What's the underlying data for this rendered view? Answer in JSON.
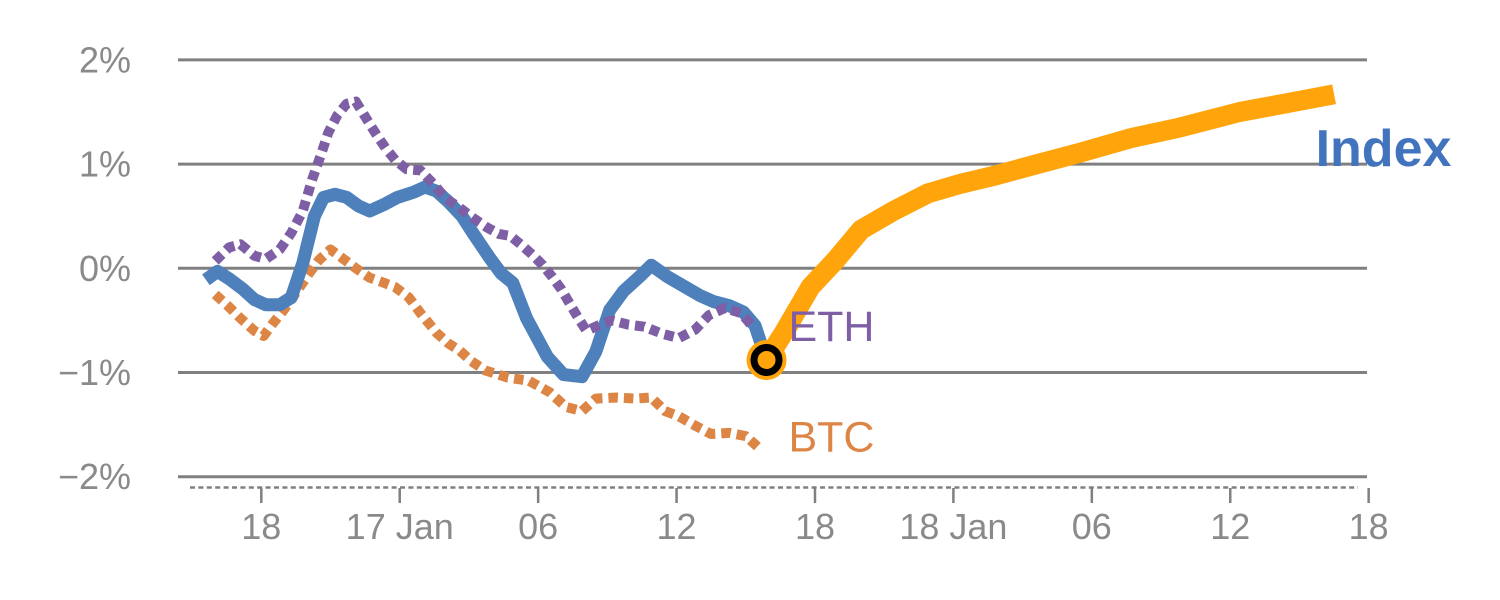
{
  "chart_data": {
    "type": "line",
    "title": "",
    "background": "#FFFFFF",
    "grid": true,
    "legend_position": "inline-end-of-line-labels",
    "colors": {
      "gridline": "#808080",
      "axis_text": "#8A8A8A",
      "index_line": "#4E80BB",
      "index_label": "#4274BE",
      "eth": "#7E5FA5",
      "btc": "#DD8544",
      "forecast": "#FFA40B",
      "marker_ring": "#000000"
    },
    "y_axis": {
      "unit": "%",
      "ylim": [
        -2.15,
        2.0
      ],
      "ticks": [
        {
          "label": "2%",
          "value": 2
        },
        {
          "label": "1%",
          "value": 1
        },
        {
          "label": "0%",
          "value": 0
        },
        {
          "label": "−1%",
          "value": -1
        },
        {
          "label": "−2%",
          "value": -2
        }
      ]
    },
    "x_axis": {
      "unit": "hours",
      "xlim_hours": [
        -3.6,
        47.9
      ],
      "minor_dash_row": true,
      "ticks": [
        {
          "label": "18",
          "hour": 0
        },
        {
          "label": "17 Jan",
          "hour": 6
        },
        {
          "label": "06",
          "hour": 12
        },
        {
          "label": "12",
          "hour": 18
        },
        {
          "label": "18",
          "hour": 24
        },
        {
          "label": "18 Jan",
          "hour": 30
        },
        {
          "label": "06",
          "hour": 36
        },
        {
          "label": "12",
          "hour": 42
        },
        {
          "label": "18",
          "hour": 48
        }
      ]
    },
    "series": [
      {
        "name": "BTC",
        "role": "history",
        "color": "#DD8544",
        "line_style": "dotted",
        "stroke_width": 10,
        "points": [
          [
            -2.0,
            -0.25
          ],
          [
            -1.4,
            -0.37
          ],
          [
            -0.9,
            -0.48
          ],
          [
            -0.3,
            -0.6
          ],
          [
            0.1,
            -0.65
          ],
          [
            0.5,
            -0.53
          ],
          [
            0.9,
            -0.42
          ],
          [
            1.3,
            -0.3
          ],
          [
            1.7,
            -0.17
          ],
          [
            2.1,
            -0.04
          ],
          [
            2.5,
            0.08
          ],
          [
            3.0,
            0.18
          ],
          [
            3.5,
            0.1
          ],
          [
            4.1,
            0.0
          ],
          [
            4.7,
            -0.09
          ],
          [
            5.2,
            -0.13
          ],
          [
            5.8,
            -0.18
          ],
          [
            6.4,
            -0.28
          ],
          [
            6.9,
            -0.43
          ],
          [
            7.6,
            -0.62
          ],
          [
            8.1,
            -0.72
          ],
          [
            8.6,
            -0.79
          ],
          [
            9.1,
            -0.89
          ],
          [
            9.7,
            -0.98
          ],
          [
            10.7,
            -1.05
          ],
          [
            11.6,
            -1.08
          ],
          [
            12.5,
            -1.19
          ],
          [
            13.2,
            -1.33
          ],
          [
            13.9,
            -1.37
          ],
          [
            14.5,
            -1.25
          ],
          [
            15.4,
            -1.24
          ],
          [
            16.2,
            -1.25
          ],
          [
            16.9,
            -1.24
          ],
          [
            17.5,
            -1.37
          ],
          [
            18.1,
            -1.42
          ],
          [
            18.8,
            -1.51
          ],
          [
            19.5,
            -1.59
          ],
          [
            20.3,
            -1.58
          ],
          [
            21.0,
            -1.61
          ],
          [
            21.6,
            -1.73
          ]
        ]
      },
      {
        "name": "Index",
        "role": "history",
        "color": "#4E80BB",
        "line_style": "solid",
        "stroke_width": 13,
        "points": [
          [
            -2.4,
            -0.11
          ],
          [
            -1.9,
            -0.03
          ],
          [
            -1.4,
            -0.1
          ],
          [
            -0.8,
            -0.2
          ],
          [
            -0.3,
            -0.3
          ],
          [
            0.2,
            -0.35
          ],
          [
            0.8,
            -0.35
          ],
          [
            1.3,
            -0.28
          ],
          [
            1.8,
            0.05
          ],
          [
            2.3,
            0.5
          ],
          [
            2.7,
            0.68
          ],
          [
            3.2,
            0.71
          ],
          [
            3.7,
            0.68
          ],
          [
            4.2,
            0.6
          ],
          [
            4.7,
            0.55
          ],
          [
            5.3,
            0.61
          ],
          [
            5.9,
            0.68
          ],
          [
            6.6,
            0.73
          ],
          [
            7.1,
            0.78
          ],
          [
            7.6,
            0.74
          ],
          [
            8.1,
            0.64
          ],
          [
            8.7,
            0.5
          ],
          [
            9.2,
            0.33
          ],
          [
            9.9,
            0.1
          ],
          [
            10.4,
            -0.05
          ],
          [
            10.9,
            -0.14
          ],
          [
            11.5,
            -0.48
          ],
          [
            12.4,
            -0.85
          ],
          [
            13.1,
            -1.02
          ],
          [
            13.9,
            -1.04
          ],
          [
            14.5,
            -0.8
          ],
          [
            15.1,
            -0.4
          ],
          [
            15.7,
            -0.22
          ],
          [
            16.4,
            -0.08
          ],
          [
            16.9,
            0.03
          ],
          [
            17.6,
            -0.08
          ],
          [
            18.3,
            -0.17
          ],
          [
            19.0,
            -0.26
          ],
          [
            19.6,
            -0.32
          ],
          [
            20.3,
            -0.36
          ],
          [
            20.9,
            -0.42
          ],
          [
            21.4,
            -0.55
          ],
          [
            21.9,
            -0.88
          ]
        ]
      },
      {
        "name": "ETH",
        "role": "history",
        "color": "#7E5FA5",
        "line_style": "dotted",
        "stroke_width": 10,
        "points": [
          [
            -2.0,
            0.07
          ],
          [
            -1.4,
            0.2
          ],
          [
            -0.9,
            0.23
          ],
          [
            -0.3,
            0.12
          ],
          [
            0.2,
            0.09
          ],
          [
            0.8,
            0.18
          ],
          [
            1.3,
            0.34
          ],
          [
            1.8,
            0.55
          ],
          [
            2.2,
            0.85
          ],
          [
            2.6,
            1.1
          ],
          [
            2.9,
            1.3
          ],
          [
            3.3,
            1.47
          ],
          [
            3.7,
            1.58
          ],
          [
            4.1,
            1.6
          ],
          [
            4.6,
            1.42
          ],
          [
            5.0,
            1.28
          ],
          [
            5.4,
            1.15
          ],
          [
            5.8,
            1.04
          ],
          [
            6.3,
            0.95
          ],
          [
            6.9,
            0.94
          ],
          [
            7.5,
            0.8
          ],
          [
            8.0,
            0.67
          ],
          [
            8.6,
            0.58
          ],
          [
            9.2,
            0.48
          ],
          [
            9.8,
            0.39
          ],
          [
            10.3,
            0.33
          ],
          [
            10.8,
            0.31
          ],
          [
            11.3,
            0.22
          ],
          [
            11.8,
            0.12
          ],
          [
            12.2,
            0.03
          ],
          [
            12.6,
            -0.08
          ],
          [
            13.0,
            -0.2
          ],
          [
            13.4,
            -0.35
          ],
          [
            13.8,
            -0.5
          ],
          [
            14.1,
            -0.6
          ],
          [
            14.6,
            -0.55
          ],
          [
            15.2,
            -0.5
          ],
          [
            15.9,
            -0.54
          ],
          [
            16.6,
            -0.56
          ],
          [
            17.4,
            -0.63
          ],
          [
            18.1,
            -0.67
          ],
          [
            18.8,
            -0.59
          ],
          [
            19.4,
            -0.45
          ],
          [
            20.1,
            -0.38
          ],
          [
            20.8,
            -0.43
          ],
          [
            21.3,
            -0.56
          ]
        ]
      },
      {
        "name": "Index forecast",
        "role": "forecast",
        "color": "#FFA40B",
        "line_style": "solid",
        "stroke_width": 20,
        "points": [
          [
            21.9,
            -0.88
          ],
          [
            22.7,
            -0.6
          ],
          [
            23.8,
            -0.18
          ],
          [
            24.9,
            0.08
          ],
          [
            26.0,
            0.37
          ],
          [
            27.4,
            0.55
          ],
          [
            28.9,
            0.72
          ],
          [
            30.3,
            0.81
          ],
          [
            31.8,
            0.89
          ],
          [
            33.3,
            0.98
          ],
          [
            35.5,
            1.11
          ],
          [
            37.7,
            1.25
          ],
          [
            39.8,
            1.35
          ],
          [
            42.4,
            1.5
          ],
          [
            44.6,
            1.59
          ],
          [
            46.5,
            1.67
          ]
        ]
      }
    ],
    "marker": {
      "name": "forecast-start",
      "hour": 21.9,
      "value": -0.88,
      "shape": "ring",
      "ring_color": "#000000",
      "fill_color": "#FFA40B"
    },
    "annotations": [
      {
        "id": "index",
        "text": "Index",
        "hour": 45.7,
        "value": 0.98,
        "color": "#4274BE",
        "size": 52,
        "bold": true
      },
      {
        "id": "eth",
        "text": "ETH",
        "hour": 22.85,
        "value": -0.7,
        "color": "#7E5FA5",
        "size": 43,
        "bold": false
      },
      {
        "id": "btc",
        "text": "BTC",
        "hour": 22.85,
        "value": -1.76,
        "color": "#DD8544",
        "size": 43,
        "bold": false
      }
    ]
  }
}
